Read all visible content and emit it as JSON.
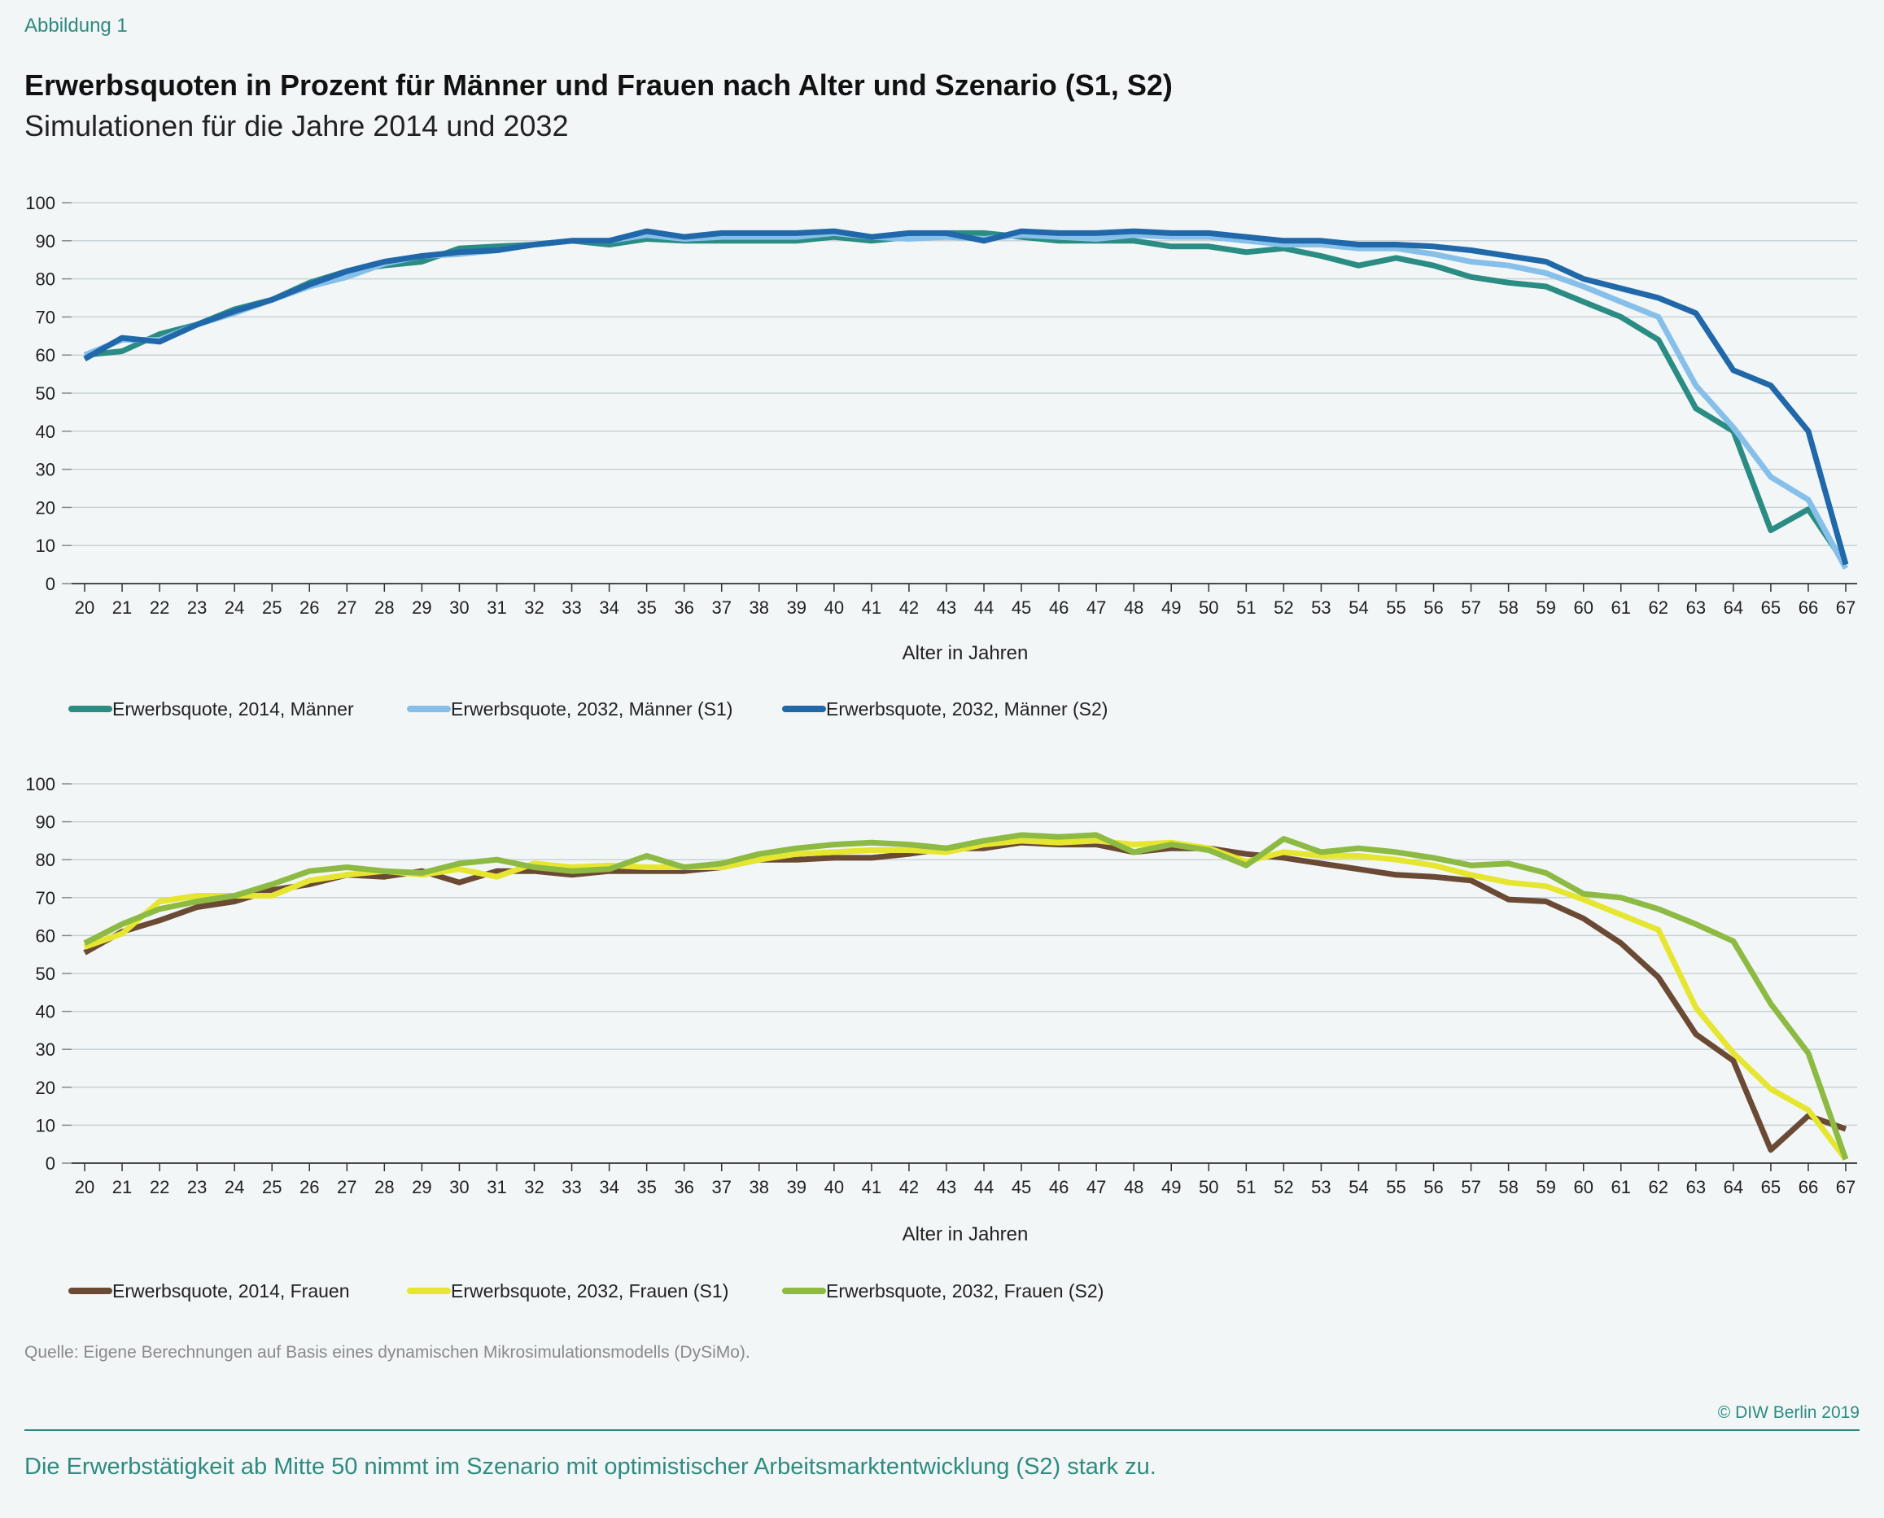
{
  "figure_label": "Abbildung 1",
  "title": "Erwerbsquoten in Prozent für Männer und Frauen nach Alter und Szenario (S1, S2)",
  "subtitle": "Simulationen für die Jahre 2014 und 2032",
  "source": "Quelle: Eigene Berechnungen auf Basis eines dynamischen Mikrosimulationsmodells (DySiMo).",
  "copyright": "© DIW Berlin 2019",
  "takeaway": "Die Erwerbstätigkeit ab Mitte 50 nimmt im Szenario mit optimistischer Arbeitsmarktentwicklung (S2) stark zu.",
  "chart_data": [
    {
      "type": "line",
      "xlabel": "Alter in Jahren",
      "ylabel": "",
      "ylim": [
        0,
        100
      ],
      "yticks": [
        0,
        10,
        20,
        30,
        40,
        50,
        60,
        70,
        80,
        90,
        100
      ],
      "grid": true,
      "legend": "bottom",
      "x": [
        20,
        21,
        22,
        23,
        24,
        25,
        26,
        27,
        28,
        29,
        30,
        31,
        32,
        33,
        34,
        35,
        36,
        37,
        38,
        39,
        40,
        41,
        42,
        43,
        44,
        45,
        46,
        47,
        48,
        49,
        50,
        51,
        52,
        53,
        54,
        55,
        56,
        57,
        58,
        59,
        60,
        61,
        62,
        63,
        64,
        65,
        66,
        67
      ],
      "series": [
        {
          "name": "Erwerbsquote, 2014, Männer",
          "color": "#2a8c82",
          "values": [
            60,
            61,
            65.5,
            68,
            72,
            74.5,
            79,
            82,
            83.5,
            84.5,
            88,
            88.5,
            89,
            90,
            89,
            90.5,
            90,
            90,
            90,
            90,
            91,
            90,
            91,
            92,
            92,
            91,
            90,
            90,
            90,
            88.5,
            88.5,
            87,
            88,
            86,
            83.5,
            85.5,
            83.5,
            80.5,
            79,
            78,
            74,
            70,
            64,
            46,
            40,
            14,
            19.5,
            5
          ]
        },
        {
          "name": "Erwerbsquote, 2032, Männer (S1)",
          "color": "#86c0ea",
          "values": [
            60,
            64,
            64,
            68,
            71,
            74.5,
            78,
            80.5,
            84,
            86,
            86.5,
            87.5,
            89,
            90,
            90,
            91.5,
            90.5,
            91,
            91,
            91,
            92,
            91,
            90.5,
            91,
            90.5,
            91.5,
            91,
            90.5,
            91.5,
            91,
            91,
            90,
            89,
            89,
            88,
            88,
            86.5,
            84.5,
            83.5,
            81.5,
            78,
            74,
            70,
            52,
            41,
            28,
            22,
            4
          ]
        },
        {
          "name": "Erwerbsquote, 2032, Männer (S2)",
          "color": "#2068aa",
          "values": [
            59,
            64.5,
            63.5,
            68,
            71.5,
            74.5,
            78.5,
            82,
            84.5,
            86,
            87,
            87.5,
            89,
            90,
            90,
            92.5,
            91,
            92,
            92,
            92,
            92.5,
            91,
            92,
            92,
            90,
            92.5,
            92,
            92,
            92.5,
            92,
            92,
            91,
            90,
            90,
            89,
            89,
            88.5,
            87.5,
            86,
            84.5,
            80,
            77.5,
            75,
            71,
            56,
            52,
            40,
            5
          ]
        }
      ]
    },
    {
      "type": "line",
      "xlabel": "Alter in Jahren",
      "ylabel": "",
      "ylim": [
        0,
        100
      ],
      "yticks": [
        0,
        10,
        20,
        30,
        40,
        50,
        60,
        70,
        80,
        90,
        100
      ],
      "grid": true,
      "legend": "bottom",
      "x": [
        20,
        21,
        22,
        23,
        24,
        25,
        26,
        27,
        28,
        29,
        30,
        31,
        32,
        33,
        34,
        35,
        36,
        37,
        38,
        39,
        40,
        41,
        42,
        43,
        44,
        45,
        46,
        47,
        48,
        49,
        50,
        51,
        52,
        53,
        54,
        55,
        56,
        57,
        58,
        59,
        60,
        61,
        62,
        63,
        64,
        65,
        66,
        67
      ],
      "series": [
        {
          "name": "Erwerbsquote, 2014, Frauen",
          "color": "#6b4a35",
          "values": [
            55.5,
            61,
            64,
            67.5,
            69,
            72,
            73.5,
            76,
            75.5,
            77,
            74,
            77,
            77,
            76,
            77,
            77,
            77,
            78,
            80,
            80,
            80.5,
            80.5,
            81.5,
            83,
            83,
            84.5,
            84,
            84,
            82,
            83,
            83,
            81.5,
            80.5,
            79,
            77.5,
            76,
            75.5,
            74.5,
            69.5,
            69,
            64.5,
            58,
            49,
            34,
            27,
            3.5,
            12.5,
            9
          ]
        },
        {
          "name": "Erwerbsquote, 2032, Frauen (S1)",
          "color": "#e6e630",
          "values": [
            57,
            60.5,
            69,
            70.5,
            70.5,
            70.5,
            74.5,
            76,
            77,
            76,
            77.5,
            75.5,
            79,
            78,
            78.5,
            78,
            78,
            78,
            80,
            81.5,
            82,
            82.5,
            82.5,
            82,
            84,
            85,
            84.5,
            85,
            84,
            84.5,
            83,
            79.5,
            82,
            81,
            81,
            80,
            78.5,
            76,
            74,
            73,
            69.5,
            65.5,
            61.5,
            41,
            29,
            19.5,
            14,
            1
          ]
        },
        {
          "name": "Erwerbsquote, 2032, Frauen (S2)",
          "color": "#8dba42",
          "values": [
            58,
            63,
            67,
            69,
            70.5,
            73.5,
            77,
            78,
            77,
            76.5,
            79,
            80,
            78,
            77,
            77.5,
            81,
            78,
            79,
            81.5,
            83,
            84,
            84.5,
            84,
            83,
            85,
            86.5,
            86,
            86.5,
            82,
            84,
            82.5,
            78.5,
            85.5,
            82,
            83,
            82,
            80.5,
            78.5,
            79,
            76.5,
            71,
            70,
            67,
            63,
            58.5,
            42,
            29,
            1
          ]
        }
      ]
    }
  ]
}
